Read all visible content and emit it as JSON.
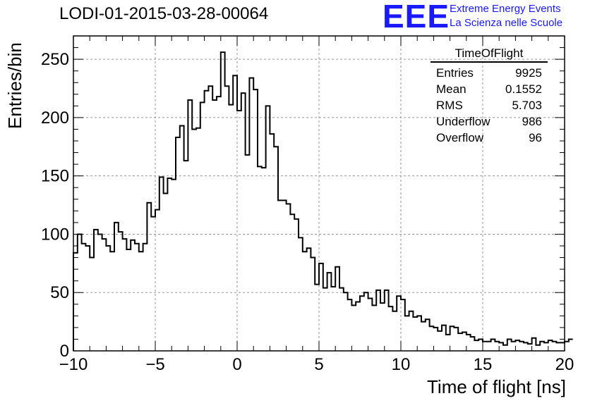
{
  "header": {
    "title": "LODI-01-2015-03-28-00064",
    "logo_text": "EEE",
    "logo_line1": "Extreme Energy Events",
    "logo_line2": "La Scienza nelle Scuole"
  },
  "stats_box": {
    "name": "TimeOfFlight",
    "rows": [
      {
        "label": "Entries",
        "value": "9925"
      },
      {
        "label": "Mean",
        "value": "0.1552"
      },
      {
        "label": "RMS",
        "value": "5.703"
      },
      {
        "label": "Underflow",
        "value": "986"
      },
      {
        "label": "Overflow",
        "value": "96"
      }
    ]
  },
  "chart_data": {
    "type": "bar",
    "histogram": true,
    "title": "LODI-01-2015-03-28-00064",
    "xlabel": "Time of flight [ns]",
    "ylabel": "Entries/bin",
    "xlim": [
      -10,
      20
    ],
    "ylim": [
      0,
      270
    ],
    "bin_width": 0.25,
    "x_ticks": [
      -10,
      -5,
      0,
      5,
      10,
      15,
      20
    ],
    "x_tick_labels": [
      "−10",
      "−5",
      "0",
      "5",
      "10",
      "15",
      "20"
    ],
    "y_ticks": [
      0,
      50,
      100,
      150,
      200,
      250
    ],
    "y_tick_labels": [
      "0",
      "50",
      "100",
      "150",
      "200",
      "250"
    ],
    "grid": true,
    "line_color": "#000000",
    "values": [
      84,
      100,
      92,
      90,
      80,
      104,
      100,
      96,
      90,
      85,
      110,
      102,
      96,
      87,
      95,
      92,
      85,
      92,
      127,
      115,
      121,
      149,
      135,
      148,
      147,
      183,
      193,
      163,
      215,
      190,
      191,
      213,
      223,
      227,
      215,
      218,
      256,
      227,
      211,
      236,
      206,
      221,
      168,
      234,
      224,
      158,
      157,
      210,
      186,
      175,
      129,
      129,
      126,
      117,
      113,
      97,
      85,
      88,
      80,
      57,
      75,
      54,
      67,
      55,
      72,
      54,
      50,
      44,
      39,
      42,
      47,
      50,
      45,
      39,
      52,
      41,
      52,
      38,
      34,
      47,
      44,
      30,
      34,
      29,
      30,
      25,
      27,
      21,
      20,
      17,
      22,
      14,
      21,
      20,
      15,
      16,
      14,
      12,
      9,
      10,
      8,
      8,
      10,
      8,
      7,
      5,
      10,
      8,
      9,
      8,
      7,
      6,
      11,
      5,
      8,
      7,
      9,
      8,
      7,
      7,
      8,
      10
    ]
  }
}
